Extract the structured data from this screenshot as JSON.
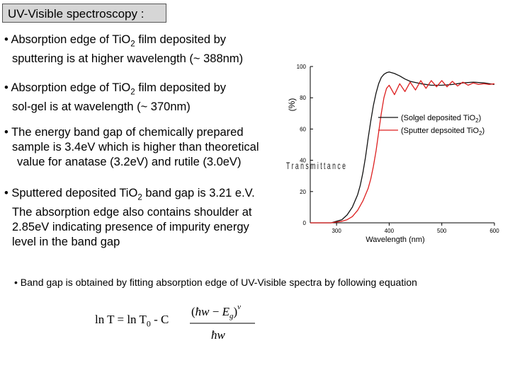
{
  "title": "UV-Visible spectroscopy :",
  "bullets": [
    {
      "line1_pre": "• Absorption edge of TiO",
      "line1_sub": "2",
      "line1_post": " film deposited by",
      "line2": "sputtering is at higher wavelength (~ 388nm)"
    },
    {
      "line1_pre": "• Absorption edge of TiO",
      "line1_sub": "2",
      "line1_post": " film deposited by",
      "line2": "sol-gel is at wavelength (~ 370nm)"
    },
    {
      "line1": "• The energy band gap of chemically prepared",
      "line2": "sample is 3.4eV which is higher than theoretical",
      "line3": "value for anatase (3.2eV) and rutile (3.0eV)"
    },
    {
      "line1_pre": "• Sputtered deposited TiO",
      "line1_sub": "2",
      "line1_post": " band gap is 3.21 e.V.",
      "line2": "The absorption edge also contains shoulder at",
      "line3": "2.85eV indicating presence of impurity energy",
      "line4": "level in the band gap"
    }
  ],
  "bottom_bullet": "• Band gap is obtained by fitting absorption edge of UV-Visible spectra by following equation",
  "equation": {
    "lhs": "ln T =  ln T",
    "lhs_sub": "0",
    "lhs_tail": " -  C",
    "numerator_open": "(",
    "numerator_hw": "ħw",
    "numerator_minus": " − ",
    "numerator_E": "E",
    "numerator_g": "g",
    "numerator_close": ")",
    "exponent": "ν",
    "denominator": "ħw"
  },
  "chart_data": {
    "type": "line",
    "xlabel": "Wavelength (nm)",
    "ylabel": "(%)",
    "ylabel_fragment": "T r a n s m i t t a n c e",
    "xlim": [
      250,
      600
    ],
    "ylim": [
      0,
      100
    ],
    "x_ticks": [
      "300",
      "400",
      "500",
      "600"
    ],
    "y_ticks": [
      "0",
      "20",
      "40",
      "60",
      "80",
      "100"
    ],
    "legend_position": "right",
    "series": [
      {
        "name": "(Solgel deposited TiO2)",
        "legend_text": "(Solgel deposited TiO",
        "legend_sub": "2",
        "legend_close": ")",
        "color": "#111111",
        "x": [
          250,
          270,
          290,
          300,
          310,
          320,
          330,
          340,
          345,
          350,
          355,
          360,
          365,
          370,
          375,
          380,
          385,
          390,
          395,
          400,
          410,
          420,
          430,
          440,
          460,
          480,
          500,
          520,
          540,
          560,
          580,
          600
        ],
        "y": [
          0,
          0,
          0,
          1,
          2,
          5,
          10,
          18,
          24,
          32,
          42,
          54,
          65,
          75,
          83,
          89,
          93,
          95,
          96,
          96.5,
          95.5,
          94,
          92,
          90.5,
          89,
          88,
          88,
          88.5,
          89.5,
          90,
          89.5,
          88.5
        ]
      },
      {
        "name": "(Sputter depsoited TiO2)",
        "legend_text": "(Sputter depsoited TiO",
        "legend_sub": "2",
        "legend_close": ")",
        "color": "#dd1f1f",
        "x": [
          250,
          270,
          290,
          300,
          310,
          320,
          330,
          340,
          350,
          360,
          365,
          370,
          375,
          380,
          385,
          390,
          395,
          400,
          410,
          420,
          430,
          440,
          450,
          460,
          470,
          480,
          490,
          500,
          510,
          520,
          530,
          540,
          550,
          560,
          570,
          580,
          590,
          600
        ],
        "y": [
          0,
          0,
          0,
          0.5,
          1,
          2,
          4,
          8,
          14,
          22,
          28,
          36,
          46,
          58,
          70,
          80,
          86,
          88,
          82,
          89,
          84,
          90,
          85,
          91,
          86,
          91,
          87,
          91,
          87,
          90.5,
          87.5,
          90,
          88,
          89.5,
          88.5,
          89,
          88.5,
          89
        ]
      }
    ]
  }
}
